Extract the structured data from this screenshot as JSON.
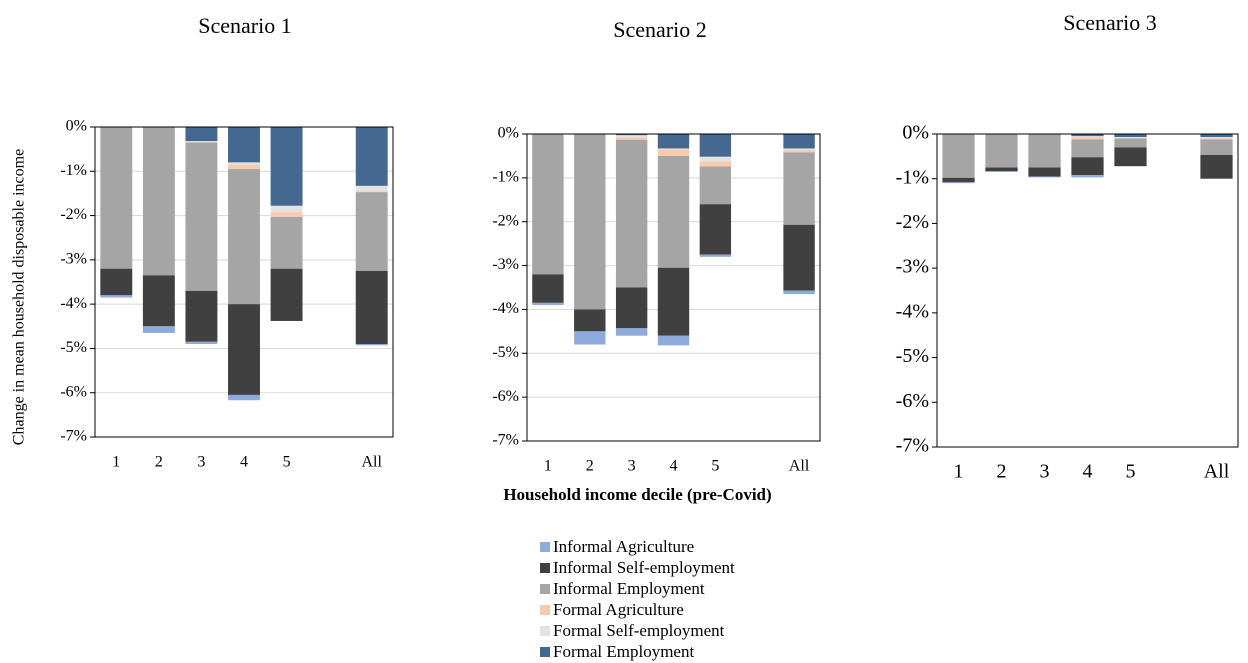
{
  "chart_data": [
    {
      "type": "bar",
      "stacked": true,
      "title": "Scenario 1",
      "y_label": "Change in mean household disposable  income",
      "categories": [
        "1",
        "2",
        "3",
        "4",
        "5",
        null,
        "All"
      ],
      "ylim": [
        -7,
        0
      ],
      "yticks": [
        {
          "value": 0,
          "label": "0%"
        },
        {
          "value": -1,
          "label": "-1%"
        },
        {
          "value": -2,
          "label": "-2%"
        },
        {
          "value": -3,
          "label": "-3%"
        },
        {
          "value": -4,
          "label": "-4%"
        },
        {
          "value": -5,
          "label": "-5%"
        },
        {
          "value": -6,
          "label": "-6%"
        },
        {
          "value": -7,
          "label": "-7%"
        }
      ],
      "grid": true,
      "series": [
        {
          "color": "#44688f",
          "values": [
            0,
            0,
            -0.32,
            -0.8,
            -1.78,
            null,
            -1.33
          ]
        },
        {
          "color": "#e4e3e3",
          "values": [
            0,
            0,
            -0.03,
            -0.05,
            -0.15,
            null,
            -0.12
          ]
        },
        {
          "color": "#f8cbad",
          "values": [
            0,
            0,
            0,
            -0.1,
            -0.1,
            null,
            -0.02
          ]
        },
        {
          "color": "#a5a5a5",
          "values": [
            -3.2,
            -3.35,
            -3.35,
            -3.05,
            -1.17,
            null,
            -1.78
          ]
        },
        {
          "color": "#404040",
          "values": [
            -0.6,
            -1.15,
            -1.15,
            -2.05,
            -1.18,
            null,
            -1.65
          ]
        },
        {
          "color": "#8faadc",
          "values": [
            -0.05,
            -0.15,
            -0.05,
            -0.12,
            0,
            null,
            -0.03
          ]
        }
      ]
    },
    {
      "type": "bar",
      "stacked": true,
      "title": "Scenario 2",
      "x_label": "Household income decile (pre-Covid)",
      "categories": [
        "1",
        "2",
        "3",
        "4",
        "5",
        null,
        "All"
      ],
      "ylim": [
        -7,
        0
      ],
      "yticks": [
        {
          "value": 0,
          "label": "0%"
        },
        {
          "value": -1,
          "label": "-1%"
        },
        {
          "value": -2,
          "label": "-2%"
        },
        {
          "value": -3,
          "label": "-3%"
        },
        {
          "value": -4,
          "label": "-4%"
        },
        {
          "value": -5,
          "label": "-5%"
        },
        {
          "value": -6,
          "label": "-6%"
        },
        {
          "value": -7,
          "label": "-7%"
        }
      ],
      "grid": true,
      "series": [
        {
          "name": "Formal Employment",
          "color": "#44688f",
          "values": [
            0,
            0,
            -0.03,
            -0.33,
            -0.52,
            null,
            -0.33
          ]
        },
        {
          "name": "Formal Self-employment",
          "color": "#e4e3e3",
          "values": [
            0,
            0,
            -0.05,
            -0.02,
            -0.1,
            null,
            -0.03
          ]
        },
        {
          "name": "Formal Agriculture",
          "color": "#f8cbad",
          "values": [
            0,
            0,
            -0.05,
            -0.15,
            -0.12,
            null,
            -0.06
          ]
        },
        {
          "name": "Informal Employment",
          "color": "#a5a5a5",
          "values": [
            -3.2,
            -4.0,
            -3.37,
            -2.55,
            -0.86,
            null,
            -1.65
          ]
        },
        {
          "name": "Informal Self-employment",
          "color": "#404040",
          "values": [
            -0.65,
            -0.5,
            -0.93,
            -1.55,
            -1.15,
            null,
            -1.5
          ]
        },
        {
          "name": "Informal Agriculture",
          "color": "#8faadc",
          "values": [
            -0.05,
            -0.3,
            -0.17,
            -0.22,
            -0.05,
            null,
            -0.08
          ]
        }
      ]
    },
    {
      "type": "bar",
      "stacked": true,
      "title": "Scenario 3",
      "categories": [
        "1",
        "2",
        "3",
        "4",
        "5",
        null,
        "All"
      ],
      "ylim": [
        -7,
        0
      ],
      "yticks": [
        {
          "value": 0,
          "label": "0%"
        },
        {
          "value": -1,
          "label": "-1%"
        },
        {
          "value": -2,
          "label": "-2%"
        },
        {
          "value": -3,
          "label": "-3%"
        },
        {
          "value": -4,
          "label": "-4%"
        },
        {
          "value": -5,
          "label": "-5%"
        },
        {
          "value": -6,
          "label": "-6%"
        },
        {
          "value": -7,
          "label": "-7%"
        }
      ],
      "grid": false,
      "series": [
        {
          "color": "#44688f",
          "values": [
            0,
            0,
            0,
            -0.05,
            -0.07,
            null,
            -0.07
          ]
        },
        {
          "color": "#e4e3e3",
          "values": [
            0,
            0,
            0,
            -0.02,
            -0.03,
            null,
            -0.03
          ]
        },
        {
          "color": "#f8cbad",
          "values": [
            0,
            0,
            0,
            -0.05,
            0,
            null,
            -0.02
          ]
        },
        {
          "color": "#a5a5a5",
          "values": [
            -0.98,
            -0.75,
            -0.75,
            -0.4,
            -0.2,
            null,
            -0.35
          ]
        },
        {
          "color": "#404040",
          "values": [
            -0.1,
            -0.08,
            -0.2,
            -0.4,
            -0.42,
            null,
            -0.53
          ]
        },
        {
          "color": "#8faadc",
          "values": [
            -0.02,
            -0.02,
            -0.02,
            -0.05,
            0,
            null,
            0
          ]
        }
      ]
    }
  ]
}
